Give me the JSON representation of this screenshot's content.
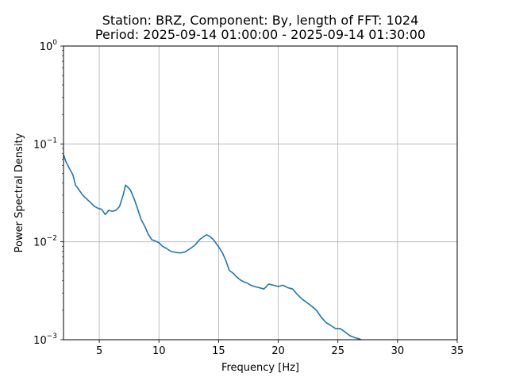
{
  "chart_data": {
    "type": "line",
    "title": "Station: BRZ, Component: By, length of FFT: 1024",
    "subtitle": "Period: 2025-09-14 01:00:00 - 2025-09-14 01:30:00",
    "xlabel": "Frequency [Hz]",
    "ylabel": "Power Spectral Density",
    "xlim": [
      2,
      35
    ],
    "ylim": [
      0.001,
      1
    ],
    "yscale": "log",
    "grid": true,
    "x_ticks": [
      5,
      10,
      15,
      20,
      25,
      30,
      35
    ],
    "x_tick_labels": [
      "5",
      "10",
      "15",
      "20",
      "25",
      "30",
      "35"
    ],
    "y_ticks": [
      0.001,
      0.01,
      0.1,
      1
    ],
    "y_tick_labels": [
      {
        "base": "10",
        "exp": "−3"
      },
      {
        "base": "10",
        "exp": "−2"
      },
      {
        "base": "10",
        "exp": "−1"
      },
      {
        "base": "10",
        "exp": "0"
      }
    ],
    "series": [
      {
        "color": "#1f77b4",
        "x": [
          2.0,
          2.2,
          2.5,
          2.8,
          3.0,
          3.3,
          3.6,
          4.0,
          4.3,
          4.6,
          4.9,
          5.2,
          5.5,
          5.8,
          6.1,
          6.4,
          6.7,
          7.0,
          7.2,
          7.4,
          7.6,
          7.9,
          8.2,
          8.5,
          8.8,
          9.1,
          9.4,
          9.7,
          10.0,
          10.3,
          10.6,
          11.0,
          11.4,
          11.8,
          12.2,
          12.6,
          13.0,
          13.4,
          13.7,
          14.0,
          14.3,
          14.6,
          15.0,
          15.3,
          15.6,
          15.9,
          16.2,
          16.5,
          16.8,
          17.1,
          17.4,
          17.7,
          18.0,
          18.4,
          18.8,
          19.2,
          19.6,
          20.0,
          20.4,
          20.8,
          21.2,
          21.6,
          22.0,
          22.4,
          22.8,
          23.2,
          23.6,
          24.0,
          24.4,
          24.8,
          25.2,
          25.6,
          26.0,
          26.4,
          26.8,
          27.0
        ],
        "y": [
          0.078,
          0.066,
          0.056,
          0.048,
          0.038,
          0.034,
          0.03,
          0.027,
          0.025,
          0.023,
          0.022,
          0.0215,
          0.019,
          0.021,
          0.0205,
          0.021,
          0.023,
          0.03,
          0.038,
          0.036,
          0.034,
          0.028,
          0.022,
          0.017,
          0.0145,
          0.012,
          0.0105,
          0.0102,
          0.0098,
          0.009,
          0.0086,
          0.008,
          0.0078,
          0.0077,
          0.0079,
          0.0085,
          0.0092,
          0.0105,
          0.0112,
          0.0118,
          0.0113,
          0.0104,
          0.0089,
          0.0078,
          0.0065,
          0.0051,
          0.0048,
          0.0044,
          0.0041,
          0.0039,
          0.0038,
          0.0036,
          0.0035,
          0.0034,
          0.0033,
          0.0037,
          0.0036,
          0.0035,
          0.0036,
          0.0034,
          0.0033,
          0.0029,
          0.0026,
          0.0024,
          0.0022,
          0.002,
          0.0017,
          0.0015,
          0.0014,
          0.0013,
          0.0013,
          0.0012,
          0.0011,
          0.00105,
          0.00102,
          0.00099
        ]
      }
    ]
  }
}
